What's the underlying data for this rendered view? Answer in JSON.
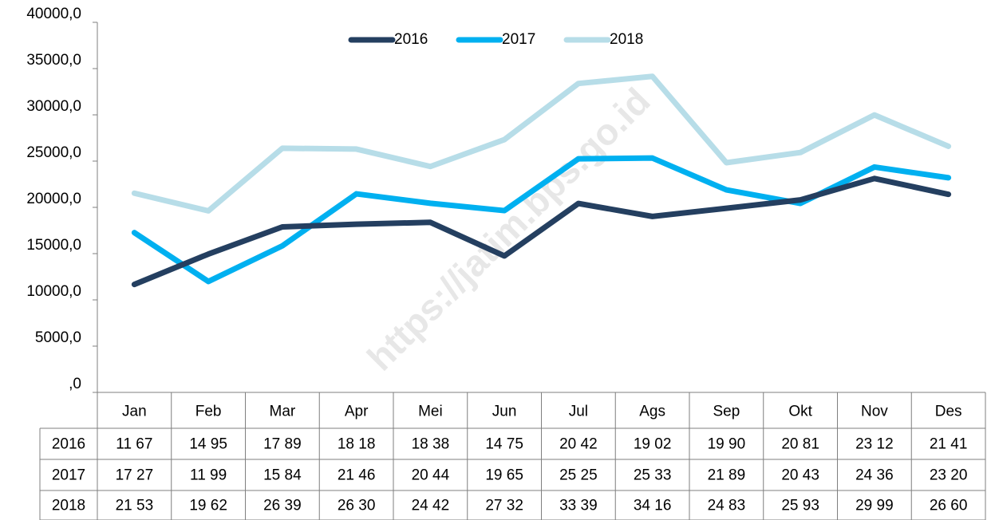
{
  "chart_data": {
    "type": "line",
    "watermark": "https://jatim.bps.go.id",
    "categories": [
      "Jan",
      "Feb",
      "Mar",
      "Apr",
      "Mei",
      "Jun",
      "Jul",
      "Ags",
      "Sep",
      "Okt",
      "Nov",
      "Des"
    ],
    "series": [
      {
        "name": "2016",
        "color": "#243f60",
        "values": [
          11670,
          14950,
          17890,
          18180,
          18380,
          14750,
          20420,
          19020,
          19900,
          20810,
          23120,
          21410
        ],
        "value_labels": [
          "11 67",
          "14 95",
          "17 89",
          "18 18",
          "18 38",
          "14 75",
          "20 42",
          "19 02",
          "19 90",
          "20 81",
          "23 12",
          "21 41"
        ]
      },
      {
        "name": "2017",
        "color": "#00b0f0",
        "values": [
          17270,
          11990,
          15840,
          21460,
          20440,
          19650,
          25250,
          25330,
          21890,
          20430,
          24360,
          23200
        ],
        "value_labels": [
          "17 27",
          "11 99",
          "15 84",
          "21 46",
          "20 44",
          "19 65",
          "25 25",
          "25 33",
          "21 89",
          "20 43",
          "24 36",
          "23 20"
        ]
      },
      {
        "name": "2018",
        "color": "#b7dde8",
        "values": [
          21530,
          19620,
          26390,
          26300,
          24420,
          27320,
          33390,
          34160,
          24830,
          25930,
          29990,
          26600
        ],
        "value_labels": [
          "21 53",
          "19 62",
          "26 39",
          "26 30",
          "24 42",
          "27 32",
          "33 39",
          "34 16",
          "24 83",
          "25 93",
          "29 99",
          "26 60"
        ]
      }
    ],
    "ylim": [
      0,
      40000
    ],
    "yticks": [
      {
        "value": 0,
        "label": ",0"
      },
      {
        "value": 5000,
        "label": "5000,0"
      },
      {
        "value": 10000,
        "label": "10000,0"
      },
      {
        "value": 15000,
        "label": "15000,0"
      },
      {
        "value": 20000,
        "label": "20000,0"
      },
      {
        "value": 25000,
        "label": "25000,0"
      },
      {
        "value": 30000,
        "label": "30000,0"
      },
      {
        "value": 35000,
        "label": "35000,0"
      },
      {
        "value": 40000,
        "label": "40000,0"
      }
    ],
    "legend": "top"
  }
}
